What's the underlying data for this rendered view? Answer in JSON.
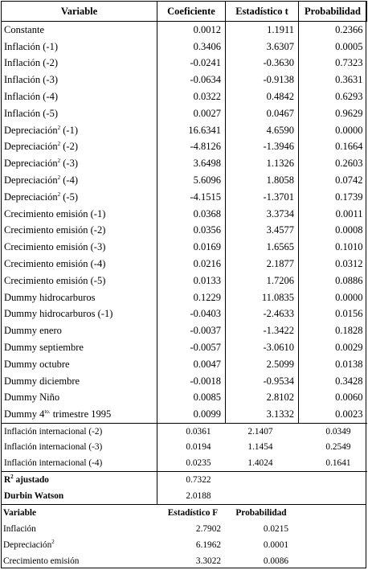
{
  "headers": [
    "Variable",
    "Coeficiente",
    "Estadístico t",
    "Probabilidad"
  ],
  "rows": [
    {
      "var": "Constante",
      "sup": "",
      "suffix": "",
      "coef": "0.0012",
      "t": "1.1911",
      "p": "0.2366"
    },
    {
      "var": "Inflación (-1)",
      "sup": "",
      "suffix": "",
      "coef": "0.3406",
      "t": "3.6307",
      "p": "0.0005"
    },
    {
      "var": "Inflación (-2)",
      "sup": "",
      "suffix": "",
      "coef": "-0.0241",
      "t": "-0.3630",
      "p": "0.7323"
    },
    {
      "var": "Inflación (-3)",
      "sup": "",
      "suffix": "",
      "coef": "-0.0634",
      "t": "-0.9138",
      "p": "0.3631"
    },
    {
      "var": "Inflación (-4)",
      "sup": "",
      "suffix": "",
      "coef": "0.0322",
      "t": "0.4842",
      "p": "0.6293"
    },
    {
      "var": "Inflación (-5)",
      "sup": "",
      "suffix": "",
      "coef": "0.0027",
      "t": "0.0467",
      "p": "0.9629"
    },
    {
      "var": "Depreciación",
      "sup": "2",
      "suffix": " (-1)",
      "coef": "16.6341",
      "t": "4.6590",
      "p": "0.0000"
    },
    {
      "var": "Depreciación",
      "sup": "2",
      "suffix": " (-2)",
      "coef": "-4.8126",
      "t": "-1.3946",
      "p": "0.1664"
    },
    {
      "var": "Depreciación",
      "sup": "2",
      "suffix": " (-3)",
      "coef": "3.6498",
      "t": "1.1326",
      "p": "0.2603"
    },
    {
      "var": "Depreciación",
      "sup": "2",
      "suffix": " (-4)",
      "coef": "5.6096",
      "t": "1.8058",
      "p": "0.0742"
    },
    {
      "var": "Depreciación",
      "sup": "2",
      "suffix": " (-5)",
      "coef": "-4.1515",
      "t": "-1.3701",
      "p": "0.1739"
    },
    {
      "var": "Crecimiento emisión (-1)",
      "sup": "",
      "suffix": "",
      "coef": "0.0368",
      "t": "3.3734",
      "p": "0.0011"
    },
    {
      "var": "Crecimiento emisión (-2)",
      "sup": "",
      "suffix": "",
      "coef": "0.0356",
      "t": "3.4577",
      "p": "0.0008"
    },
    {
      "var": "Crecimiento emisión (-3)",
      "sup": "",
      "suffix": "",
      "coef": "0.0169",
      "t": "1.6565",
      "p": "0.1010"
    },
    {
      "var": "Crecimiento emisión (-4)",
      "sup": "",
      "suffix": "",
      "coef": "0.0216",
      "t": "2.1877",
      "p": "0.0312"
    },
    {
      "var": "Crecimiento emisión (-5)",
      "sup": "",
      "suffix": "",
      "coef": "0.0133",
      "t": "1.7206",
      "p": "0.0886"
    },
    {
      "var": "Dummy hidrocarburos",
      "sup": "",
      "suffix": "",
      "coef": "0.1229",
      "t": "11.0835",
      "p": "0.0000"
    },
    {
      "var": "Dummy hidrocarburos (-1)",
      "sup": "",
      "suffix": "",
      "coef": "-0.0403",
      "t": "-2.4633",
      "p": "0.0156"
    },
    {
      "var": "Dummy enero",
      "sup": "",
      "suffix": "",
      "coef": "-0.0037",
      "t": "-1.3422",
      "p": "0.1828"
    },
    {
      "var": "Dummy septiembre",
      "sup": "",
      "suffix": "",
      "coef": "-0.0057",
      "t": "-3.0610",
      "p": "0.0029"
    },
    {
      "var": "Dummy octubre",
      "sup": "",
      "suffix": "",
      "coef": "0.0047",
      "t": "2.5099",
      "p": "0.0138"
    },
    {
      "var": "Dummy diciembre",
      "sup": "",
      "suffix": "",
      "coef": "-0.0018",
      "t": "-0.9534",
      "p": "0.3428"
    },
    {
      "var": "Dummy Niño",
      "sup": "",
      "suffix": "",
      "coef": "0.0085",
      "t": "2.8102",
      "p": "0.0060"
    },
    {
      "var": "Dummy 4",
      "sup": "to.",
      "suffix": " trimestre 1995",
      "coef": "0.0099",
      "t": "3.1332",
      "p": "0.0023"
    }
  ],
  "intl_rows": [
    {
      "var": "Inflación internacional (-2)",
      "coef": "0.0361",
      "t": "2.1407",
      "p": "0.0349"
    },
    {
      "var": "Inflación internacional (-3)",
      "coef": "0.0194",
      "t": "1.1454",
      "p": "0.2549"
    },
    {
      "var": "Inflación internacional (-4)",
      "coef": "0.0235",
      "t": "1.4024",
      "p": "0.1641"
    }
  ],
  "fit": {
    "r2_label": "R",
    "r2_sup": "2",
    "r2_suffix": " ajustado",
    "r2_value": "0.7322",
    "dw_label": "Durbin Watson",
    "dw_value": "2.0188"
  },
  "ftest": {
    "headers": [
      "Variable",
      "Estadístico F",
      "Probabilidad"
    ],
    "rows": [
      {
        "var": "Inflación",
        "sup": "",
        "f": "2.7902",
        "p": "0.0215"
      },
      {
        "var": "Depreciación",
        "sup": "2",
        "f": "6.1962",
        "p": "0.0001"
      },
      {
        "var": "Crecimiento emisión",
        "sup": "",
        "f": "3.3022",
        "p": "0.0086"
      }
    ]
  }
}
